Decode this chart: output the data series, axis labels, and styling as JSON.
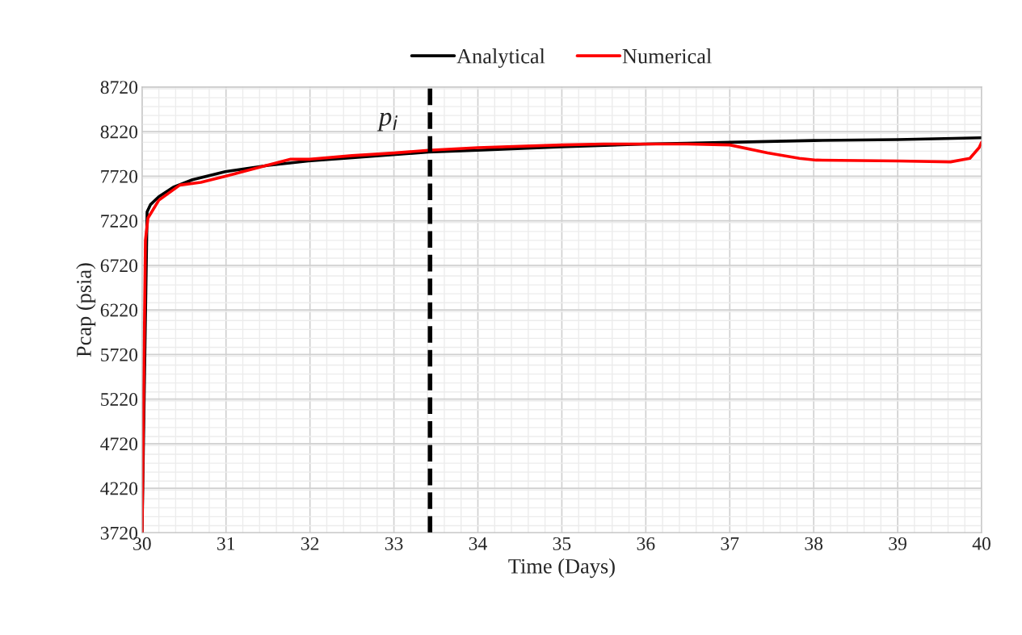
{
  "chart_data": {
    "type": "line",
    "xlabel": "Time (Days)",
    "ylabel": "Pcap (psia)",
    "xlim": [
      30,
      40
    ],
    "xticks": [
      30,
      31,
      32,
      33,
      34,
      35,
      36,
      37,
      38,
      39,
      40
    ],
    "ylim": [
      3720,
      8720
    ],
    "yticks": [
      3720,
      4220,
      4720,
      5220,
      5720,
      6220,
      6720,
      7220,
      7720,
      8220,
      8720
    ],
    "grid": true,
    "legend": "top",
    "line_style": "solid",
    "marker": "none",
    "series": [
      {
        "name": "Analytical",
        "color": "#000000",
        "x": [
          30,
          30.06,
          30.1,
          30.2,
          30.38,
          30.6,
          30.99,
          31.5,
          31.98,
          32.7,
          33.41,
          34,
          35,
          36,
          36.49,
          37,
          38,
          39,
          40
        ],
        "values": [
          3720,
          7320,
          7400,
          7490,
          7600,
          7680,
          7770,
          7840,
          7890,
          7940,
          7990,
          8010,
          8050,
          8080,
          8090,
          8100,
          8120,
          8130,
          8150
        ]
      },
      {
        "name": "Numerical",
        "color": "#ff0000",
        "x": [
          30,
          30.04,
          30.07,
          30.2,
          30.45,
          30.7,
          31.0,
          31.4,
          31.77,
          32.0,
          32.5,
          33.0,
          33.41,
          34,
          35,
          35.5,
          36,
          36.49,
          37.0,
          37.45,
          37.83,
          38.03,
          39.0,
          39.63,
          39.86,
          39.97,
          40
        ],
        "values": [
          3720,
          7000,
          7250,
          7450,
          7620,
          7650,
          7720,
          7820,
          7910,
          7910,
          7950,
          7980,
          8010,
          8040,
          8070,
          8080,
          8080,
          8080,
          8070,
          7980,
          7920,
          7900,
          7890,
          7880,
          7920,
          8040,
          8100
        ]
      }
    ],
    "ref_lines": [
      {
        "axis": "x",
        "value": 33.43,
        "label": "p$_{i}$",
        "color": "#000000",
        "line_style": "dashed"
      }
    ]
  }
}
